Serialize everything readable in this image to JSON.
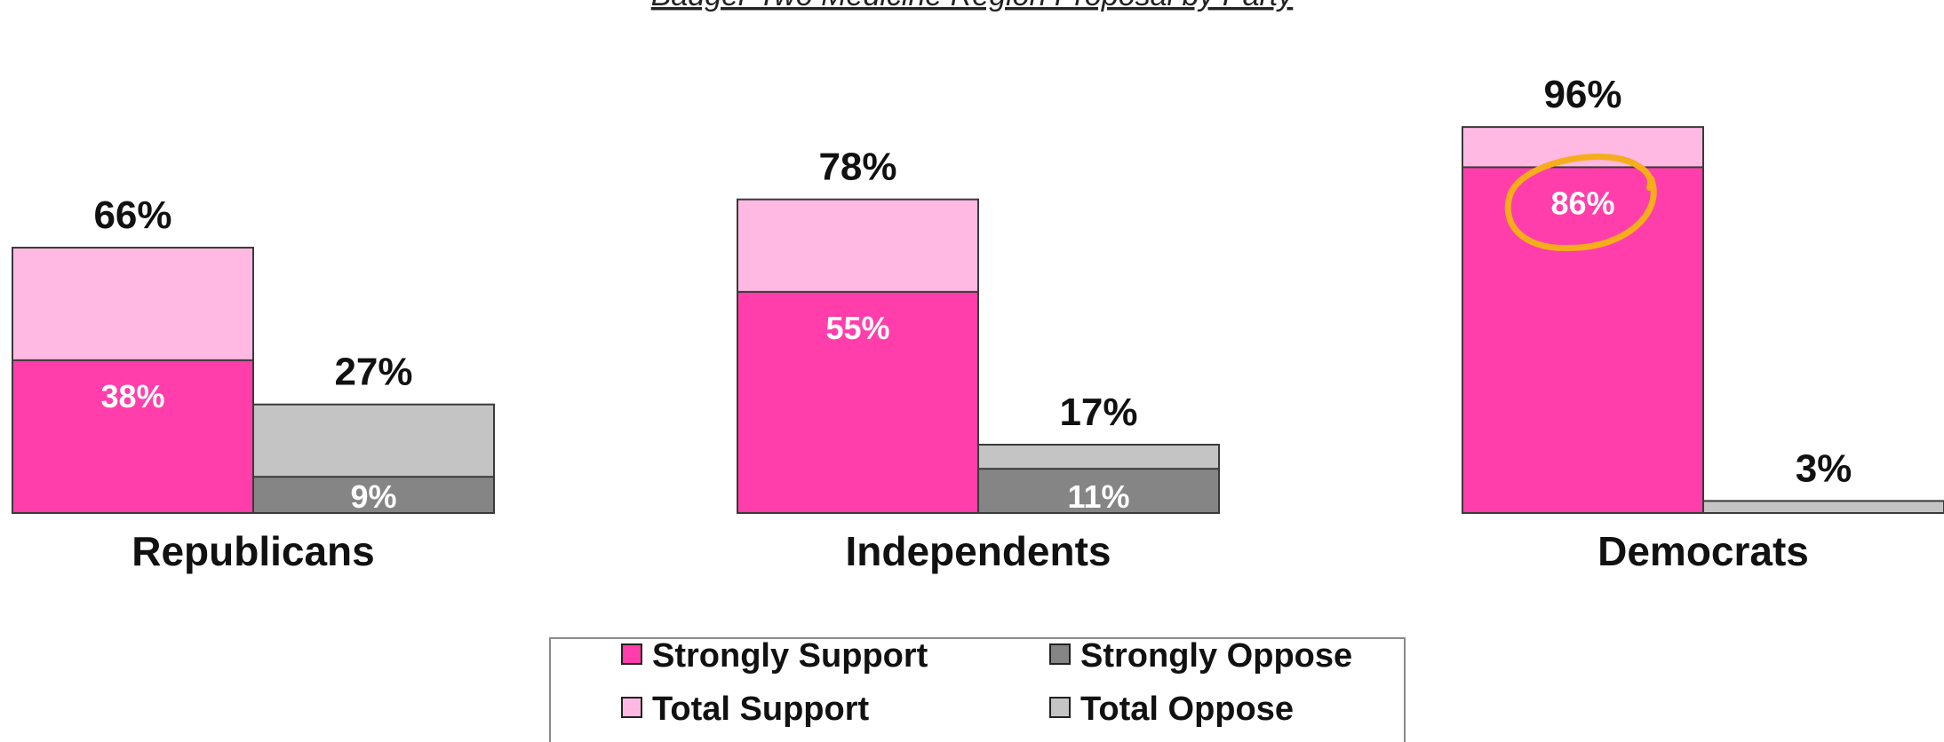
{
  "chart_data": {
    "type": "bar",
    "title": "Badger-Two Medicine Region Proposal by Party",
    "categories": [
      "Republicans",
      "Independents",
      "Democrats"
    ],
    "series": [
      {
        "name": "Strongly Support",
        "values": [
          38,
          55,
          86
        ]
      },
      {
        "name": "Total Support",
        "values": [
          66,
          78,
          96
        ]
      },
      {
        "name": "Strongly Oppose",
        "values": [
          9,
          11,
          0
        ]
      },
      {
        "name": "Total Oppose",
        "values": [
          27,
          17,
          3
        ]
      }
    ],
    "labels": {
      "total_support": [
        "66%",
        "78%",
        "96%"
      ],
      "strongly_support": [
        "38%",
        "55%",
        "86%"
      ],
      "total_oppose": [
        "27%",
        "17%",
        "3%"
      ],
      "strongly_oppose": [
        "9%",
        "11%",
        ""
      ]
    },
    "highlight": "86%",
    "ylim": [
      0,
      100
    ],
    "grid": false,
    "legend_position": "bottom-center",
    "colors": {
      "strongly_support": "#ff3eab",
      "total_support": "#ffb9e3",
      "strongly_oppose": "#858585",
      "total_oppose": "#c4c4c4",
      "highlight_circle": "#f5ad1b",
      "outline": "#3a3a3a"
    }
  }
}
